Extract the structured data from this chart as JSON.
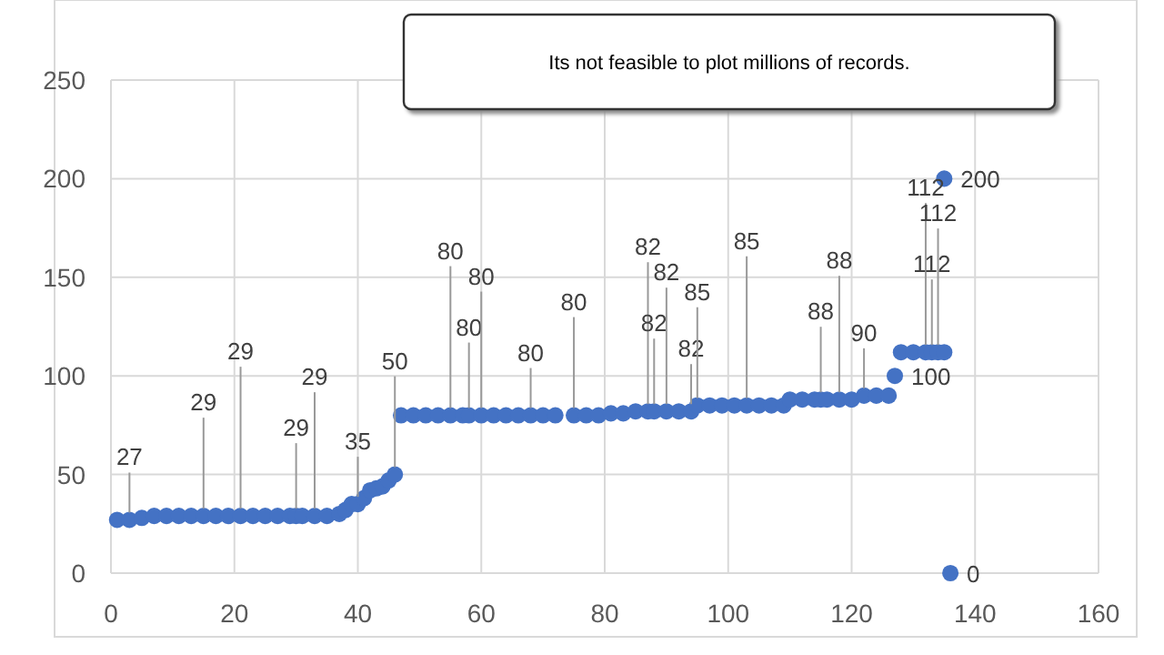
{
  "chart_data": {
    "type": "scatter",
    "annotations": [
      "Its not  feasible to plot millions of records."
    ],
    "x": [
      1,
      3,
      5,
      7,
      9,
      11,
      13,
      15,
      17,
      19,
      21,
      23,
      25,
      27,
      29,
      30,
      31,
      33,
      35,
      37,
      38,
      39,
      40,
      41,
      42,
      43,
      44,
      45,
      46,
      47,
      49,
      51,
      53,
      55,
      57,
      58,
      60,
      62,
      64,
      66,
      68,
      70,
      72,
      75,
      77,
      79,
      81,
      83,
      85,
      87,
      88,
      90,
      92,
      94,
      95,
      97,
      99,
      101,
      103,
      105,
      107,
      109,
      110,
      112,
      114,
      115,
      116,
      118,
      120,
      122,
      124,
      126,
      127,
      128,
      130,
      132,
      133,
      134,
      135,
      135,
      136
    ],
    "values": [
      27,
      27,
      28,
      29,
      29,
      29,
      29,
      29,
      29,
      29,
      29,
      29,
      29,
      29,
      29,
      29,
      29,
      29,
      29,
      30,
      32,
      35,
      35,
      38,
      42,
      43,
      44,
      47,
      50,
      80,
      80,
      80,
      80,
      80,
      80,
      80,
      80,
      80,
      80,
      80,
      80,
      80,
      80,
      80,
      80,
      80,
      81,
      81,
      82,
      82,
      82,
      82,
      82,
      82,
      85,
      85,
      85,
      85,
      85,
      85,
      85,
      85,
      88,
      88,
      88,
      88,
      88,
      88,
      88,
      90,
      90,
      90,
      100,
      112,
      112,
      112,
      112,
      112,
      112,
      200,
      0
    ],
    "value_labels": [
      null,
      "27",
      null,
      null,
      null,
      null,
      null,
      "29",
      null,
      null,
      "29",
      null,
      null,
      null,
      null,
      "29",
      null,
      "29",
      null,
      null,
      null,
      null,
      "35",
      null,
      null,
      null,
      null,
      null,
      "50",
      null,
      null,
      null,
      null,
      "80",
      null,
      "80",
      "80",
      null,
      null,
      null,
      "80",
      null,
      null,
      "80",
      null,
      null,
      null,
      null,
      null,
      "82",
      "82",
      "82",
      null,
      "82",
      "85",
      null,
      null,
      null,
      "85",
      null,
      null,
      null,
      null,
      null,
      null,
      "88",
      null,
      "88",
      null,
      "90",
      null,
      null,
      "100",
      null,
      null,
      "112",
      "112",
      "112",
      null,
      "200",
      "0"
    ],
    "color": "#4472c4",
    "marker": "circle",
    "xlim": [
      0,
      160
    ],
    "xticks": [
      0,
      20,
      40,
      60,
      80,
      100,
      120,
      140,
      160
    ],
    "ylim": [
      0,
      250
    ],
    "yticks": [
      0,
      50,
      100,
      150,
      200,
      250
    ],
    "grid": true
  }
}
